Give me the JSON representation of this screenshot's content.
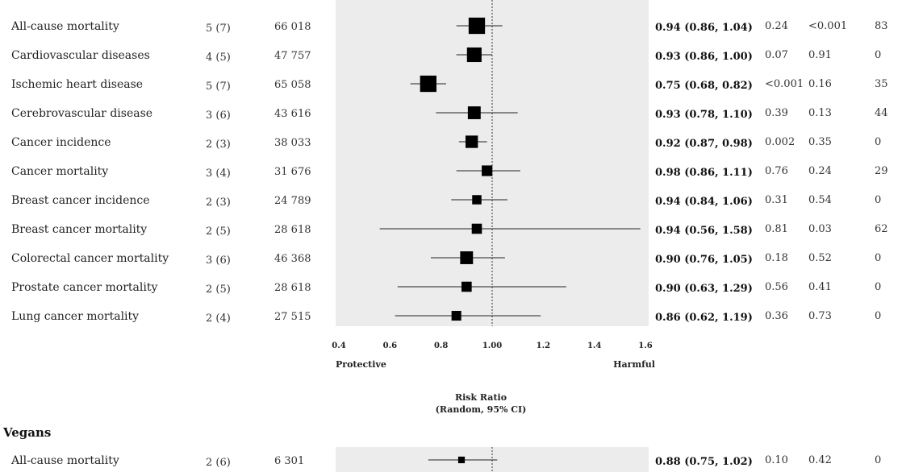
{
  "chart_data": {
    "type": "forest",
    "x_axis": {
      "label_line1": "Risk Ratio",
      "label_line2": "(Random, 95% CI)",
      "ticks": [
        0.4,
        0.6,
        0.8,
        1.0,
        1.2,
        1.4,
        1.6
      ],
      "tick_labels": [
        "0.4",
        "0.6",
        "0.8",
        "1.00",
        "1.2",
        "1.4",
        "1.6"
      ],
      "range": [
        0.4,
        1.6
      ],
      "reference_line": 1.0,
      "left_direction": "Protective",
      "right_direction": "Harmful"
    },
    "groups": [
      {
        "name": "",
        "rows": [
          {
            "outcome": "All-cause mortality",
            "studies": "5 (7)",
            "participants": "66 018",
            "rr": 0.94,
            "lo": 0.86,
            "hi": 1.04,
            "estimate_text": "0.94 (0.86, 1.04)",
            "p_effect": "0.24",
            "p_het": "<0.001",
            "i2": "83",
            "weight": 2.6
          },
          {
            "outcome": "Cardiovascular diseases",
            "studies": "4 (5)",
            "participants": "47 757",
            "rr": 0.93,
            "lo": 0.86,
            "hi": 1.0,
            "estimate_text": "0.93 (0.86, 1.00)",
            "p_effect": "0.07",
            "p_het": "0.91",
            "i2": "0",
            "weight": 2.2
          },
          {
            "outcome": "Ischemic heart disease",
            "studies": "5 (7)",
            "participants": "65 058",
            "rr": 0.75,
            "lo": 0.68,
            "hi": 0.82,
            "estimate_text": "0.75 (0.68, 0.82)",
            "p_effect": "<0.001",
            "p_het": "0.16",
            "i2": "35",
            "weight": 2.6
          },
          {
            "outcome": "Cerebrovascular disease",
            "studies": "3 (6)",
            "participants": "43 616",
            "rr": 0.93,
            "lo": 0.78,
            "hi": 1.1,
            "estimate_text": "0.93 (0.78, 1.10)",
            "p_effect": "0.39",
            "p_het": "0.13",
            "i2": "44",
            "weight": 1.8
          },
          {
            "outcome": "Cancer incidence",
            "studies": "2 (3)",
            "participants": "38 033",
            "rr": 0.92,
            "lo": 0.87,
            "hi": 0.98,
            "estimate_text": "0.92 (0.87, 0.98)",
            "p_effect": "0.002",
            "p_het": "0.35",
            "i2": "0",
            "weight": 1.7
          },
          {
            "outcome": "Cancer mortality",
            "studies": "3 (4)",
            "participants": "31 676",
            "rr": 0.98,
            "lo": 0.86,
            "hi": 1.11,
            "estimate_text": "0.98 (0.86, 1.11)",
            "p_effect": "0.76",
            "p_het": "0.24",
            "i2": "29",
            "weight": 1.3
          },
          {
            "outcome": "Breast cancer incidence",
            "studies": "2 (3)",
            "participants": "24 789",
            "rr": 0.94,
            "lo": 0.84,
            "hi": 1.06,
            "estimate_text": "0.94 (0.84, 1.06)",
            "p_effect": "0.31",
            "p_het": "0.54",
            "i2": "0",
            "weight": 1.0
          },
          {
            "outcome": "Breast cancer mortality",
            "studies": "2 (5)",
            "participants": "28 618",
            "rr": 0.94,
            "lo": 0.56,
            "hi": 1.58,
            "estimate_text": "0.94 (0.56, 1.58)",
            "p_effect": "0.81",
            "p_het": "0.03",
            "i2": "62",
            "weight": 1.2
          },
          {
            "outcome": "Colorectal cancer mortality",
            "studies": "3 (6)",
            "participants": "46 368",
            "rr": 0.9,
            "lo": 0.76,
            "hi": 1.05,
            "estimate_text": "0.90 (0.76, 1.05)",
            "p_effect": "0.18",
            "p_het": "0.52",
            "i2": "0",
            "weight": 1.8
          },
          {
            "outcome": "Prostate cancer mortality",
            "studies": "2 (5)",
            "participants": "28 618",
            "rr": 0.9,
            "lo": 0.63,
            "hi": 1.29,
            "estimate_text": "0.90 (0.63, 1.29)",
            "p_effect": "0.56",
            "p_het": "0.41",
            "i2": "0",
            "weight": 1.2
          },
          {
            "outcome": "Lung cancer mortality",
            "studies": "2 (4)",
            "participants": "27 515",
            "rr": 0.86,
            "lo": 0.62,
            "hi": 1.19,
            "estimate_text": "0.86 (0.62, 1.19)",
            "p_effect": "0.36",
            "p_het": "0.73",
            "i2": "0",
            "weight": 1.1
          }
        ]
      },
      {
        "name": "Vegans",
        "rows": [
          {
            "outcome": "All-cause mortality",
            "studies": "2 (6)",
            "participants": "6 301",
            "rr": 0.88,
            "lo": 0.75,
            "hi": 1.02,
            "estimate_text": "0.88 (0.75, 1.02)",
            "p_effect": "0.10",
            "p_het": "0.42",
            "i2": "0",
            "weight": 0.4
          }
        ]
      }
    ]
  }
}
